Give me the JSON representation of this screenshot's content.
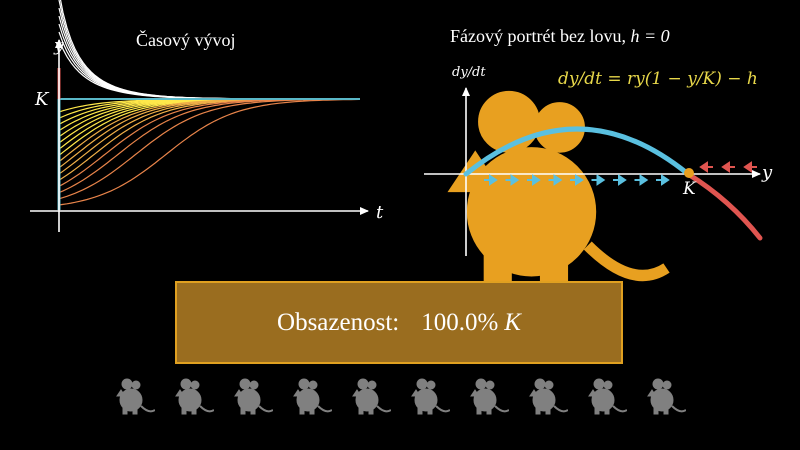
{
  "left_panel": {
    "title": "Časový vývoj",
    "y_axis_label": "y",
    "x_axis_label": "t",
    "k_label": "K"
  },
  "right_panel": {
    "title_prefix": "Fázový portrét bez lovu, ",
    "title_math": "h = 0",
    "y_axis_label": "dy/dt",
    "x_axis_label": "y",
    "k_label": "K",
    "equation": "dy/dt = ry(1 − y/K) − h"
  },
  "banner": {
    "label": "Obsazenost:",
    "value": "100.0%",
    "unit": "K"
  },
  "mice_count": 10,
  "colors": {
    "background": "#000000",
    "curve_yellow": "#ffe84a",
    "curve_white": "#ffffff",
    "curve_orange": "#e8844a",
    "k_line_teal": "#5ab8c8",
    "parabola_blue": "#5ac0e0",
    "negative_red": "#e05550",
    "mouse_orange": "#e8a020",
    "mouse_gray": "#808080",
    "banner_fill": "#9a6d1f",
    "banner_border": "#e0a020",
    "equation_yellow": "#e8d84a"
  }
}
